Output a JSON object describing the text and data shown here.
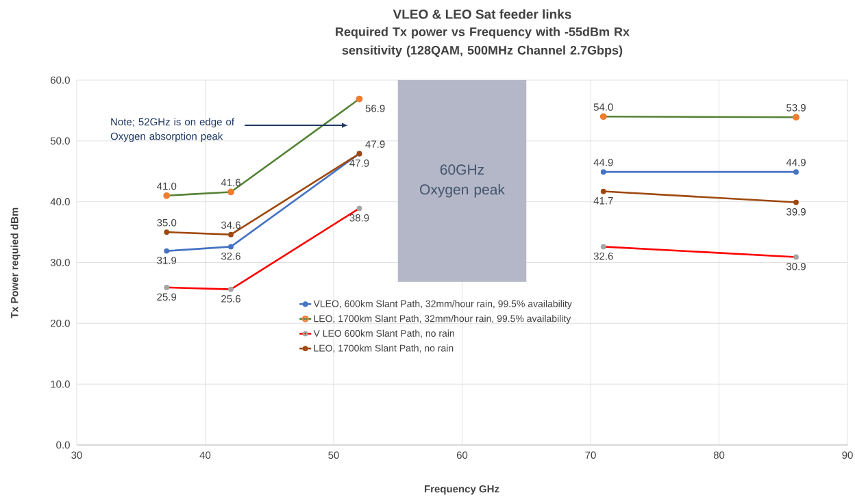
{
  "chart_data": {
    "type": "line",
    "title": "VLEO & LEO Sat feeder links",
    "subtitle": "Required Tx power vs Frequency with -55dBm Rx sensitivity (128QAM, 500MHz Channel 2.7Gbps)",
    "xlabel": "Frequency GHz",
    "ylabel": "Tx Power requied dBm",
    "x": [
      37,
      42,
      52,
      60,
      71,
      86
    ],
    "series": [
      {
        "name": "VLEO, 600km  Slant Path, 32mm/hour rain, 99.5% availability",
        "color": "#4472c4",
        "values": [
          31.9,
          32.6,
          47.9,
          null,
          44.9,
          44.9
        ],
        "value_labels": [
          "31.9",
          "32.6",
          "47.9",
          null,
          "44.9",
          "44.9"
        ]
      },
      {
        "name": "LEO, 1700km Slant Path, 32mm/hour rain,  99.5% availability",
        "color": "#548235",
        "colors": [
          "#ed7d31",
          "#ed7d31",
          "#ed7d31",
          "#ed7d31",
          "#ed7d31",
          "#ed7d31"
        ],
        "values": [
          41.0,
          41.6,
          56.9,
          null,
          54.0,
          53.9
        ],
        "value_labels": [
          "41.0",
          "41.6",
          "56.9",
          null,
          "54.0",
          "53.9"
        ]
      },
      {
        "name": "V LEO 600km Slant Path, no rain",
        "color": "#ff0000",
        "colors": [
          "#a5a5a5",
          "#a5a5a5",
          "#a5a5a5",
          "#a5a5a5",
          "#a5a5a5",
          "#a5a5a5"
        ],
        "values": [
          25.9,
          25.6,
          38.9,
          null,
          32.6,
          30.9
        ],
        "value_labels": [
          "25.9",
          "25.6",
          "38.9",
          null,
          "32.6",
          "30.9"
        ]
      },
      {
        "name": "LEO, 1700km Slant Path, no rain",
        "color": "#9e480e",
        "values": [
          35.0,
          34.6,
          47.9,
          null,
          41.7,
          39.9
        ],
        "value_labels": [
          "35.0",
          "34.6",
          "47.9",
          null,
          "41.7",
          "39.9"
        ]
      }
    ],
    "xlim": [
      30,
      90
    ],
    "xticks": [
      30,
      40,
      50,
      60,
      70,
      80,
      90
    ],
    "ylim": [
      0,
      60
    ],
    "yticks": [
      {
        "value": 0,
        "label": "0.0"
      },
      {
        "value": 10,
        "label": "10.0"
      },
      {
        "value": 20,
        "label": "20.0"
      },
      {
        "value": 30,
        "label": "30.0"
      },
      {
        "value": 40,
        "label": "40.0"
      },
      {
        "value": 50,
        "label": "50.0"
      },
      {
        "value": 60,
        "label": "60.0"
      }
    ],
    "bands": [
      {
        "axis": "x",
        "from": 55,
        "to": 65,
        "label": "60GHz Oxygen peak",
        "color": "#b3b7c8"
      }
    ],
    "annotations": [
      "Note; 52GHz is on edge of Oxygen absorption peak"
    ],
    "grid": true,
    "legend": "bottom",
    "marker": "circle",
    "line_style": "solid"
  }
}
